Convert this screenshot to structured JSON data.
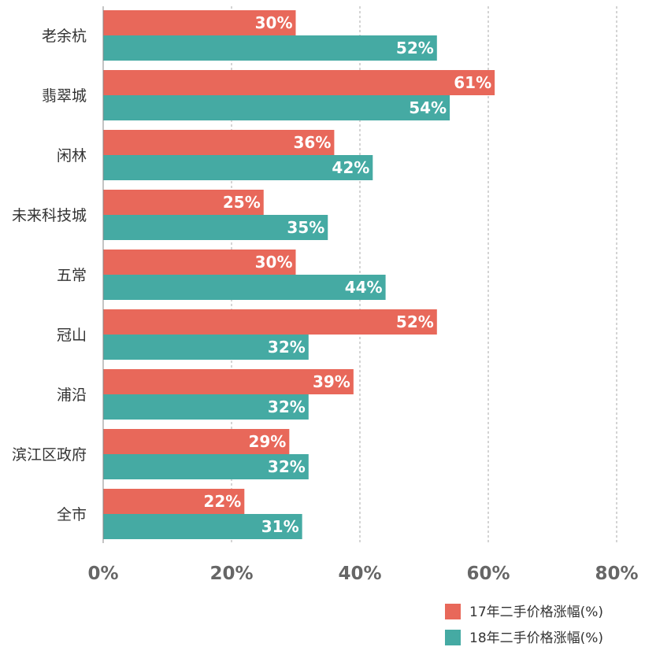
{
  "chart_data": {
    "type": "bar",
    "orientation": "horizontal",
    "categories": [
      "老余杭",
      "翡翠城",
      "闲林",
      "未来科技城",
      "五常",
      "冠山",
      "浦沿",
      "滨江区政府",
      "全市"
    ],
    "series": [
      {
        "name": "17年二手价格涨幅(%)",
        "color": "#E8685A",
        "values": [
          30,
          61,
          36,
          25,
          30,
          52,
          39,
          29,
          22
        ]
      },
      {
        "name": "18年二手价格涨幅(%)",
        "color": "#45AAA3",
        "values": [
          52,
          54,
          42,
          35,
          44,
          32,
          32,
          32,
          31
        ]
      }
    ],
    "xlim": [
      0,
      80
    ],
    "xticks": [
      0,
      20,
      40,
      60,
      80
    ],
    "tick_suffix": "%",
    "value_suffix": "%",
    "gridlines": "vertical-dotted",
    "legend_position": "bottom-right",
    "title": "",
    "xlabel": "",
    "ylabel": ""
  }
}
